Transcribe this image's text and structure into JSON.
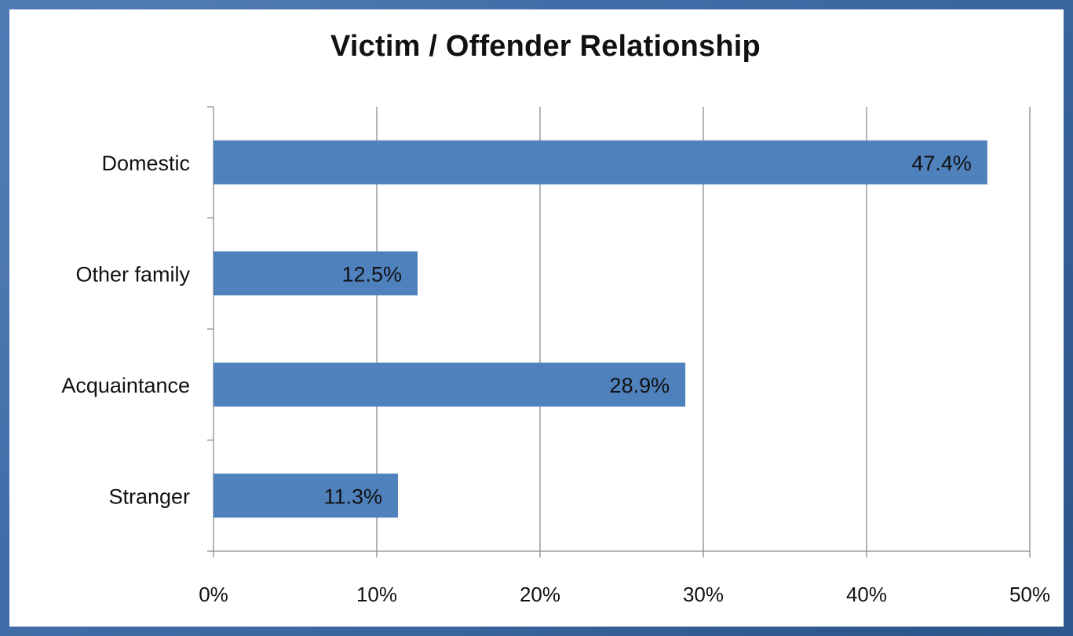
{
  "chart_data": {
    "type": "bar",
    "orientation": "horizontal",
    "title": "Victim / Offender Relationship",
    "categories": [
      "Domestic",
      "Other family",
      "Acquaintance",
      "Stranger"
    ],
    "values": [
      47.4,
      12.5,
      28.9,
      11.3
    ],
    "value_labels": [
      "47.4%",
      "12.5%",
      "28.9%",
      "11.3%"
    ],
    "xlim": [
      0,
      50
    ],
    "x_ticks": [
      0,
      10,
      20,
      30,
      40,
      50
    ],
    "x_tick_labels": [
      "0%",
      "10%",
      "20%",
      "30%",
      "40%",
      "50%"
    ],
    "xlabel": "",
    "ylabel": "",
    "grid": "vertical",
    "legend": "none",
    "bar_color": "#4f81bd"
  }
}
